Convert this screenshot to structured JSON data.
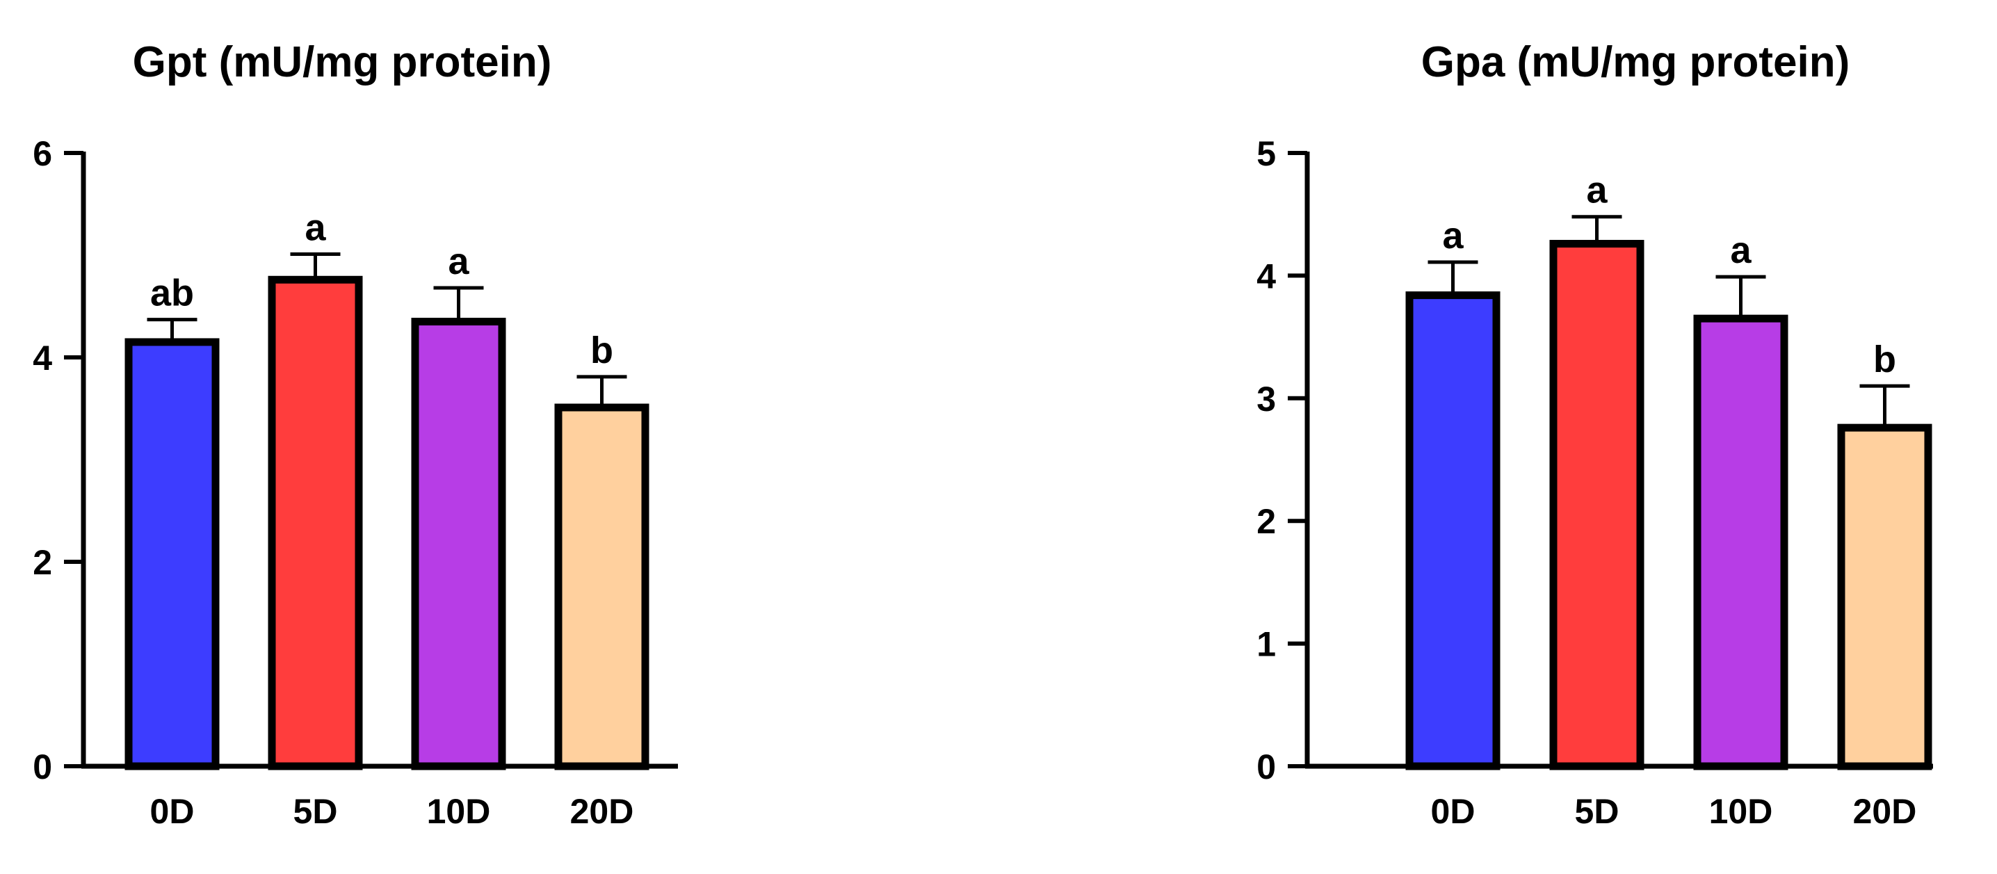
{
  "chart_data": [
    {
      "type": "bar",
      "title": "Gpt (mU/mg protein)",
      "xlabel": "",
      "ylabel": "",
      "categories": [
        "0D",
        "5D",
        "10D",
        "20D"
      ],
      "values": [
        4.15,
        4.76,
        4.35,
        3.51
      ],
      "errors": [
        0.22,
        0.25,
        0.33,
        0.3
      ],
      "significance": [
        "ab",
        "a",
        "a",
        "b"
      ],
      "colors": [
        "#3D3DFF",
        "#FF3D3D",
        "#B73DE6",
        "#FFD09E"
      ],
      "ylim": [
        0,
        6
      ],
      "yticks": [
        0,
        2,
        4,
        6
      ],
      "grid": false
    },
    {
      "type": "bar",
      "title": "Gpa (mU/mg protein)",
      "xlabel": "",
      "ylabel": "",
      "categories": [
        "0D",
        "5D",
        "10D",
        "20D"
      ],
      "values": [
        3.84,
        4.26,
        3.65,
        2.76
      ],
      "errors": [
        0.27,
        0.22,
        0.34,
        0.34
      ],
      "significance": [
        "a",
        "a",
        "a",
        "b"
      ],
      "colors": [
        "#3D3DFF",
        "#FF3D3D",
        "#B73DE6",
        "#FFD09E"
      ],
      "ylim": [
        0,
        5
      ],
      "yticks": [
        0,
        1,
        2,
        3,
        4,
        5
      ],
      "grid": false
    }
  ]
}
